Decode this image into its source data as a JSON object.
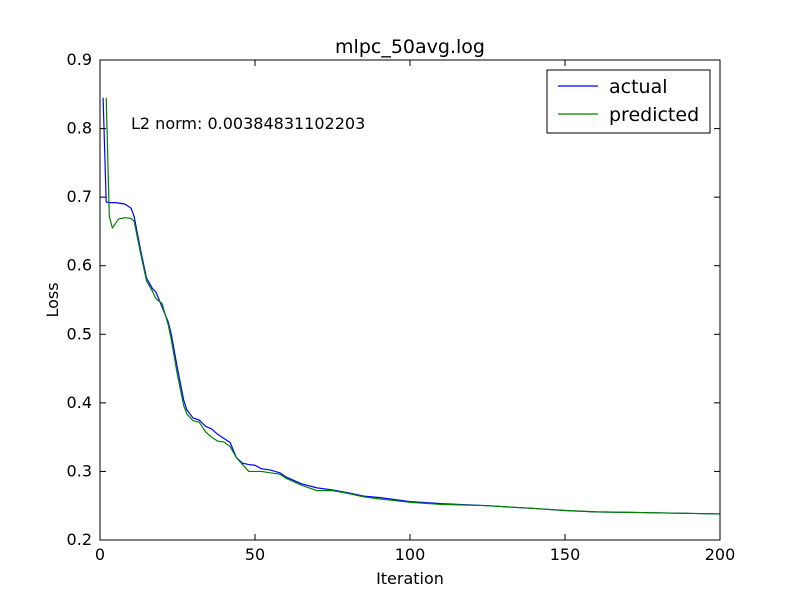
{
  "chart_data": {
    "type": "line",
    "title": "mlpc_50avg.log",
    "xlabel": "Iteration",
    "ylabel": "Loss",
    "xlim": [
      0,
      200
    ],
    "ylim": [
      0.2,
      0.9
    ],
    "xticks": [
      0,
      50,
      100,
      150,
      200
    ],
    "xtick_labels": [
      "0",
      "50",
      "100",
      "150",
      "200"
    ],
    "yticks": [
      0.2,
      0.3,
      0.4,
      0.5,
      0.6,
      0.7,
      0.8,
      0.9
    ],
    "ytick_labels": [
      "0.2",
      "0.3",
      "0.4",
      "0.5",
      "0.6",
      "0.7",
      "0.8",
      "0.9"
    ],
    "grid": false,
    "legend_position": "top-right",
    "annotation": "L2 norm: 0.00384831102203",
    "series": [
      {
        "name": "actual",
        "color": "#0000ff",
        "x": [
          1,
          2,
          3,
          5,
          8,
          10,
          11,
          13,
          15,
          17,
          18,
          20,
          22,
          23,
          25,
          27,
          28,
          30,
          32,
          34,
          36,
          38,
          40,
          42,
          44,
          46,
          48,
          50,
          52,
          55,
          58,
          60,
          65,
          70,
          75,
          80,
          85,
          90,
          100,
          110,
          125,
          140,
          150,
          160,
          175,
          200
        ],
        "y": [
          0.845,
          0.693,
          0.692,
          0.692,
          0.69,
          0.684,
          0.672,
          0.625,
          0.582,
          0.566,
          0.562,
          0.54,
          0.518,
          0.5,
          0.45,
          0.404,
          0.39,
          0.378,
          0.375,
          0.366,
          0.362,
          0.354,
          0.348,
          0.342,
          0.32,
          0.312,
          0.31,
          0.309,
          0.304,
          0.302,
          0.298,
          0.292,
          0.282,
          0.276,
          0.273,
          0.269,
          0.264,
          0.262,
          0.256,
          0.253,
          0.25,
          0.246,
          0.243,
          0.241,
          0.24,
          0.238
        ]
      },
      {
        "name": "predicted",
        "color": "#008000",
        "x": [
          2,
          3,
          4,
          6,
          8,
          10,
          11,
          13,
          15,
          17,
          18,
          20,
          22,
          23,
          25,
          27,
          28,
          30,
          32,
          34,
          36,
          38,
          40,
          42,
          44,
          46,
          48,
          50,
          52,
          55,
          58,
          60,
          65,
          70,
          75,
          80,
          85,
          90,
          100,
          110,
          125,
          140,
          150,
          160,
          175,
          200
        ],
        "y": [
          0.845,
          0.672,
          0.655,
          0.668,
          0.67,
          0.669,
          0.665,
          0.62,
          0.578,
          0.562,
          0.552,
          0.545,
          0.514,
          0.492,
          0.44,
          0.396,
          0.384,
          0.374,
          0.372,
          0.358,
          0.35,
          0.344,
          0.343,
          0.336,
          0.32,
          0.31,
          0.3,
          0.3,
          0.3,
          0.298,
          0.296,
          0.29,
          0.28,
          0.272,
          0.272,
          0.268,
          0.263,
          0.26,
          0.255,
          0.252,
          0.25,
          0.246,
          0.243,
          0.241,
          0.24,
          0.238
        ]
      }
    ]
  }
}
